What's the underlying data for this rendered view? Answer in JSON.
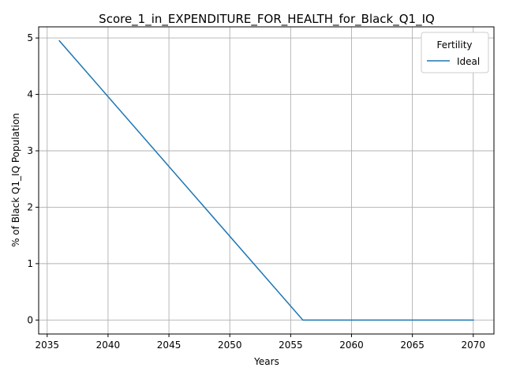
{
  "chart_data": {
    "type": "line",
    "title": "Score_1_in_EXPENDITURE_FOR_HEALTH_for_Black_Q1_IQ",
    "xlabel": "Years",
    "ylabel": "% of Black Q1_IQ Population",
    "xlim": [
      2034.3,
      2071.7
    ],
    "ylim": [
      -0.2475,
      5.1975
    ],
    "xticks": [
      2035,
      2040,
      2045,
      2050,
      2055,
      2060,
      2065,
      2070
    ],
    "yticks": [
      0,
      1,
      2,
      3,
      4,
      5
    ],
    "grid": true,
    "legend": {
      "title": "Fertility",
      "placement": "top-right"
    },
    "series": [
      {
        "name": "Ideal",
        "color": "#1f77b4",
        "x": [
          2036,
          2056,
          2057,
          2060,
          2065,
          2070
        ],
        "y": [
          4.95,
          0.0,
          0.0,
          0.0,
          0.0,
          0.0
        ]
      }
    ]
  }
}
